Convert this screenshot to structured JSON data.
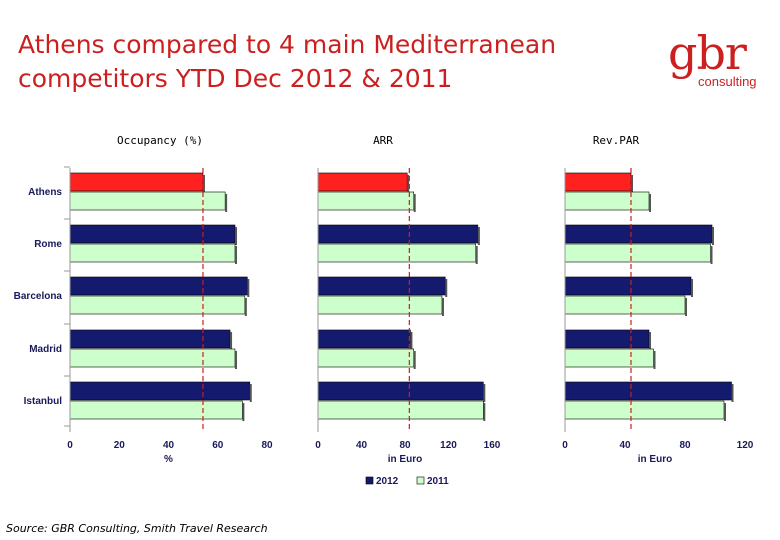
{
  "title_line1": "Athens compared to 4 main Mediterranean",
  "title_line2": "competitors YTD Dec 2012 & 2011",
  "logo": {
    "main": "gbr",
    "sub": "consulting"
  },
  "source": "Source: GBR Consulting, Smith Travel Research",
  "colors": {
    "s2012": "#141b6e",
    "s2011": "#ccffcc",
    "athens2012": "#ff2020",
    "ref": "#cc1f1f"
  },
  "chart_data": [
    {
      "type": "bar",
      "orientation": "horizontal",
      "title": "Occupancy (%)",
      "xlabel": "%",
      "categories": [
        "Athens",
        "Rome",
        "Barcelona",
        "Madrid",
        "Istanbul"
      ],
      "series": [
        {
          "name": "2012",
          "values": [
            54,
            67,
            72,
            65,
            73
          ]
        },
        {
          "name": "2011",
          "values": [
            63,
            67,
            71,
            67,
            70
          ]
        }
      ],
      "xlim": [
        0,
        80
      ],
      "xticks": [
        "0",
        "20",
        "40",
        "60",
        "80"
      ],
      "reference_line": 54
    },
    {
      "type": "bar",
      "orientation": "horizontal",
      "title": "ARR",
      "xlabel": "in Euro",
      "categories": [
        "Athens",
        "Rome",
        "Barcelona",
        "Madrid",
        "Istanbul"
      ],
      "series": [
        {
          "name": "2012",
          "values": [
            82,
            147,
            117,
            85,
            152
          ]
        },
        {
          "name": "2011",
          "values": [
            88,
            145,
            114,
            88,
            152
          ]
        }
      ],
      "xlim": [
        0,
        160
      ],
      "xticks": [
        "0",
        "40",
        "80",
        "120",
        "160"
      ],
      "reference_line": 84
    },
    {
      "type": "bar",
      "orientation": "horizontal",
      "title": "Rev.PAR",
      "xlabel": "in Euro",
      "categories": [
        "Athens",
        "Rome",
        "Barcelona",
        "Madrid",
        "Istanbul"
      ],
      "series": [
        {
          "name": "2012",
          "values": [
            44,
            98,
            84,
            56,
            111
          ]
        },
        {
          "name": "2011",
          "values": [
            56,
            97,
            80,
            59,
            106
          ]
        }
      ],
      "xlim": [
        0,
        120
      ],
      "xticks": [
        "0",
        "40",
        "80",
        "120"
      ],
      "reference_line": 44
    }
  ],
  "legend": [
    {
      "name": "2012"
    },
    {
      "name": "2011"
    }
  ]
}
